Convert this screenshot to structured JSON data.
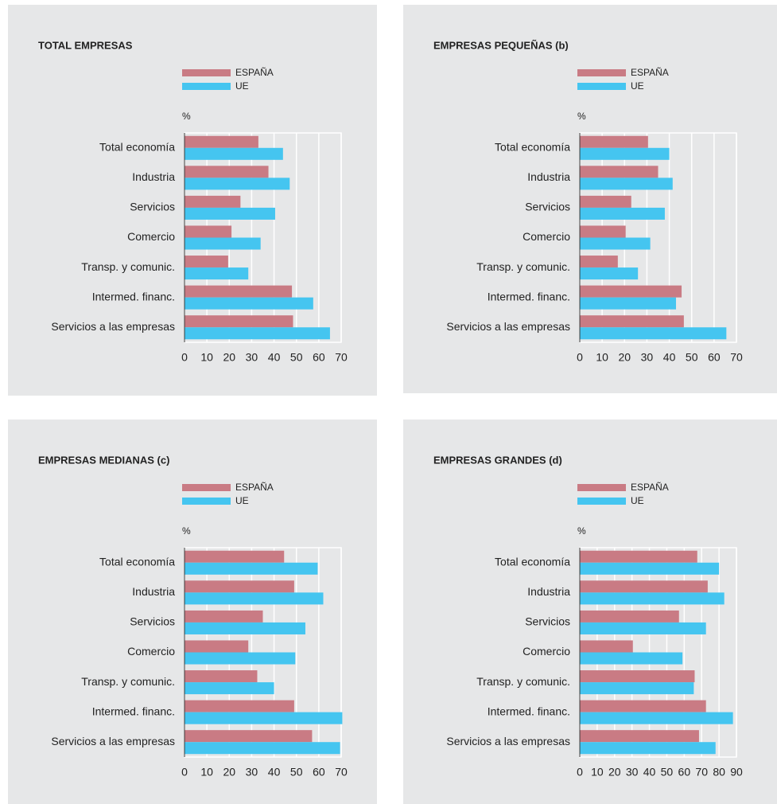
{
  "chart_data": [
    {
      "type": "barh",
      "title": "TOTAL EMPRESAS",
      "xlabel": "%",
      "categories": [
        "Total economía",
        "Industria",
        "Servicios",
        "Comercio",
        "Transp. y comunic.",
        "Intermed. financ.",
        "Servicios a las empresas"
      ],
      "series": [
        {
          "name": "ESPAÑA",
          "color": "#c97b84",
          "values": [
            33,
            37.5,
            25,
            21,
            19.5,
            48,
            48.5
          ]
        },
        {
          "name": "UE",
          "color": "#45c5f0",
          "values": [
            44,
            47,
            40.5,
            34,
            28.5,
            57.5,
            65
          ]
        }
      ],
      "xlim": [
        0,
        70
      ],
      "xticks": [
        0,
        10,
        20,
        30,
        40,
        50,
        60,
        70
      ],
      "grid": true
    },
    {
      "type": "barh",
      "title": "EMPRESAS PEQUEÑAS (b)",
      "xlabel": "%",
      "categories": [
        "Total economía",
        "Industria",
        "Servicios",
        "Comercio",
        "Transp. y comunic.",
        "Intermed. financ.",
        "Servicios a las empresas"
      ],
      "series": [
        {
          "name": "ESPAÑA",
          "color": "#c97b84",
          "values": [
            30.5,
            35,
            23,
            20.5,
            17,
            45.5,
            46.5
          ]
        },
        {
          "name": "UE",
          "color": "#45c5f0",
          "values": [
            40,
            41.5,
            38,
            31.5,
            26,
            43,
            65.5
          ]
        }
      ],
      "xlim": [
        0,
        70
      ],
      "xticks": [
        0,
        10,
        20,
        30,
        40,
        50,
        60,
        70
      ],
      "grid": true
    },
    {
      "type": "barh",
      "title": "EMPRESAS MEDIANAS (c)",
      "xlabel": "%",
      "categories": [
        "Total economía",
        "Industria",
        "Servicios",
        "Comercio",
        "Transp. y comunic.",
        "Intermed. financ.",
        "Servicios a las empresas"
      ],
      "series": [
        {
          "name": "ESPAÑA",
          "color": "#c97b84",
          "values": [
            44.5,
            49,
            35,
            28.5,
            32.5,
            49,
            57
          ]
        },
        {
          "name": "UE",
          "color": "#45c5f0",
          "values": [
            59.5,
            62,
            54,
            49.5,
            40,
            70.5,
            69.5
          ]
        }
      ],
      "xlim": [
        0,
        70
      ],
      "xticks": [
        0,
        10,
        20,
        30,
        40,
        50,
        60,
        70
      ],
      "grid": true
    },
    {
      "type": "barh",
      "title": "EMPRESAS GRANDES (d)",
      "xlabel": "%",
      "categories": [
        "Total economía",
        "Industria",
        "Servicios",
        "Comercio",
        "Transp. y comunic.",
        "Intermed. financ.",
        "Servicios a las empresas"
      ],
      "series": [
        {
          "name": "ESPAÑA",
          "color": "#c97b84",
          "values": [
            67.5,
            73.5,
            57,
            30.5,
            66,
            72.5,
            68.5
          ]
        },
        {
          "name": "UE",
          "color": "#45c5f0",
          "values": [
            80,
            83,
            72.5,
            59,
            65.5,
            88,
            78
          ]
        }
      ],
      "xlim": [
        0,
        90
      ],
      "xticks": [
        0,
        10,
        20,
        30,
        40,
        50,
        60,
        70,
        80,
        90
      ],
      "grid": true
    }
  ]
}
